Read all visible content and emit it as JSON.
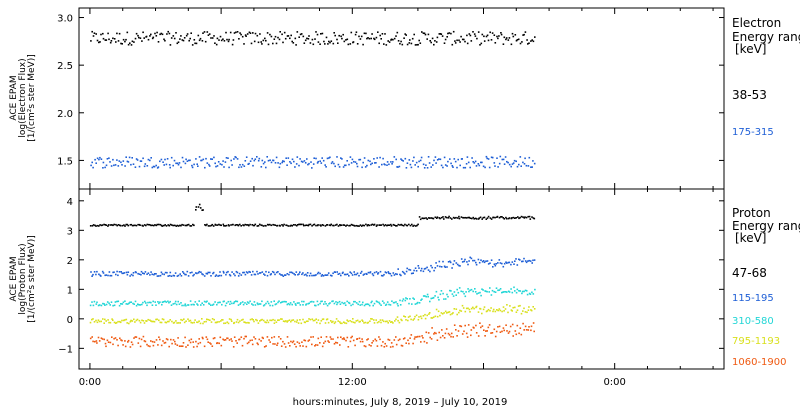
{
  "chart_data": [
    {
      "type": "scatter",
      "panel": "electron",
      "ylabel": [
        "ACE EPAM",
        "log(Electron Flux)",
        "[1/(cm²s ster MeV)]"
      ],
      "ylim": [
        1.2,
        3.1
      ],
      "yticks": [
        "1.5",
        "2.0",
        "2.5",
        "3.0"
      ],
      "ytick_values": [
        1.5,
        2.0,
        2.5,
        3.0
      ],
      "legend_title": [
        "Electron",
        "Energy range",
        "[keV]"
      ],
      "legend_placement": "right",
      "series": [
        {
          "name": "38-53",
          "color": "#000000",
          "x_range_hours": [
            0,
            40.6
          ],
          "level": 2.79,
          "spread": 0.07
        },
        {
          "name": "175-315",
          "color": "#1f5fd6",
          "x_range_hours": [
            0,
            40.6
          ],
          "level": 1.49,
          "spread": 0.06
        }
      ]
    },
    {
      "type": "scatter",
      "panel": "proton",
      "ylabel": [
        "ACE EPAM",
        "log(Proton Flux)",
        "[1/(cm²s ster MeV)]"
      ],
      "ylim": [
        -1.7,
        4.4
      ],
      "yticks": [
        "−1",
        "0",
        "1",
        "2",
        "3",
        "4"
      ],
      "ytick_values": [
        -1,
        0,
        1,
        2,
        3,
        4
      ],
      "legend_title": [
        "Proton",
        "Energy range",
        "[keV]"
      ],
      "legend_placement": "right",
      "series": [
        {
          "name": "47-68",
          "color": "#000000",
          "x_range_hours": [
            0,
            40.6
          ],
          "level": 3.2,
          "spread": 0.03
        },
        {
          "name": "115-195",
          "color": "#1f5fd6",
          "x_range_hours": [
            0,
            40.6
          ],
          "level": 1.55,
          "spread": 0.08
        },
        {
          "name": "310-580",
          "color": "#22d6d6",
          "x_range_hours": [
            0,
            40.6
          ],
          "level": 0.55,
          "spread": 0.08
        },
        {
          "name": "795-1193",
          "color": "#d9e01e",
          "x_range_hours": [
            0,
            40.6
          ],
          "level": -0.05,
          "spread": 0.08
        },
        {
          "name": "1060-1900",
          "color": "#ef5a12",
          "x_range_hours": [
            0,
            40.6
          ],
          "level": -0.75,
          "spread": 0.18
        }
      ]
    }
  ],
  "xaxis": {
    "title": "hours:minutes, July  8, 2019 – July 10, 2019",
    "tick_labels": [
      "0:00",
      "12:00",
      "0:00"
    ],
    "tick_hours": [
      0,
      24,
      48
    ],
    "range_hours": [
      -1,
      58
    ]
  }
}
